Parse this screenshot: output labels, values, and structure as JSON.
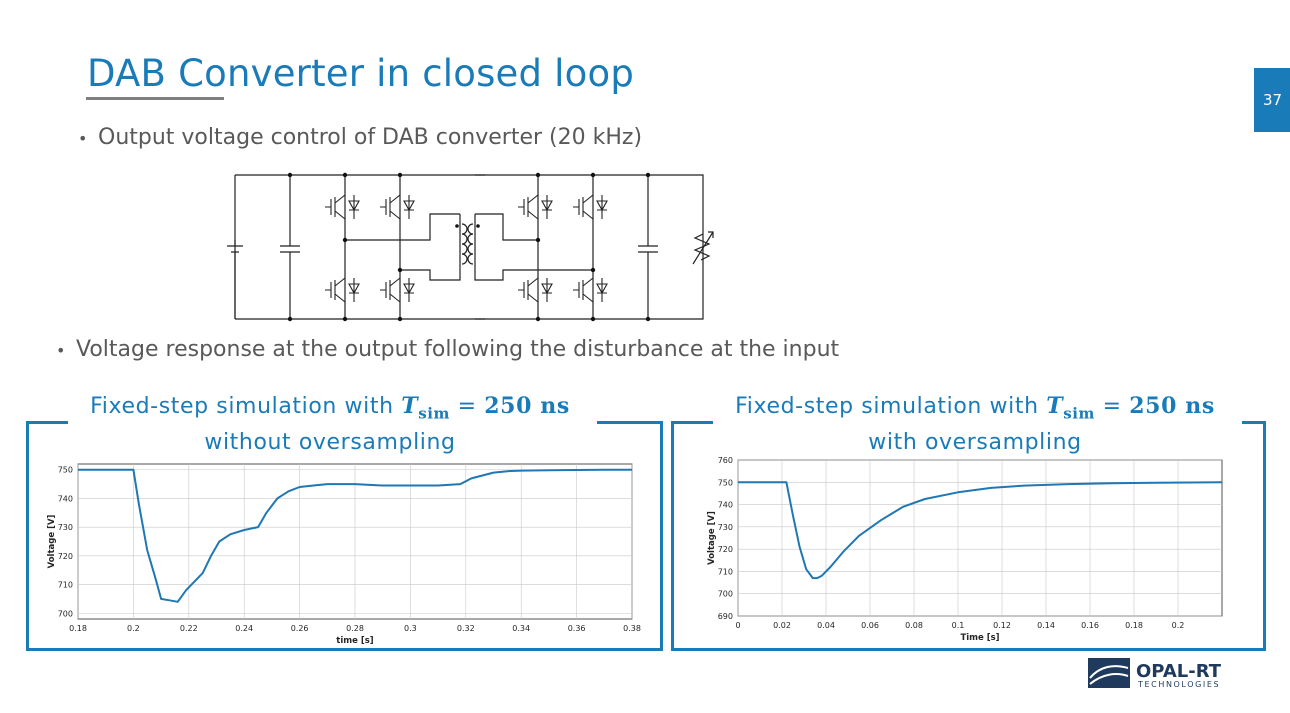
{
  "slide": {
    "title": "DAB Converter in closed loop",
    "page_number": "37",
    "bullets": [
      "Output voltage control of DAB converter (20 kHz)",
      "Voltage response at the output following the disturbance at the input"
    ]
  },
  "captions": [
    {
      "line1_prefix": "Fixed-step simulation with ",
      "sym": "T",
      "sub": "sim",
      "eq": " = ",
      "val": "250 ns",
      "line2": "without oversampling"
    },
    {
      "line1_prefix": "Fixed-step simulation with ",
      "sym": "T",
      "sub": "sim",
      "eq": " = ",
      "val": "250 ns",
      "line2": "with oversampling"
    }
  ],
  "logo": {
    "name": "OPAL-RT",
    "sub": "TECHNOLOGIES"
  },
  "colors": {
    "accent": "#1a7bb9",
    "trace": "#1f77b4",
    "text": "#595959"
  },
  "chart_data": [
    {
      "type": "line",
      "xlabel": "time [s]",
      "ylabel": "Voltage [V]",
      "xlim": [
        0.18,
        0.38
      ],
      "ylim": [
        698,
        752
      ],
      "xticks": [
        0.18,
        0.2,
        0.22,
        0.24,
        0.26,
        0.28,
        0.3,
        0.32,
        0.34,
        0.36,
        0.38
      ],
      "xtick_labels": [
        "0.18",
        "0.2",
        "0.22",
        "0.24",
        "0.26",
        "0.28",
        "0.3",
        "0.32",
        "0.34",
        "0.36",
        "0.38"
      ],
      "yticks": [
        700,
        710,
        720,
        730,
        740,
        750
      ],
      "ytick_labels": [
        "700",
        "710",
        "720",
        "730",
        "740",
        "750"
      ],
      "grid": true,
      "x": [
        0.18,
        0.2,
        0.202,
        0.205,
        0.208,
        0.21,
        0.213,
        0.216,
        0.219,
        0.222,
        0.225,
        0.228,
        0.231,
        0.235,
        0.24,
        0.245,
        0.248,
        0.252,
        0.256,
        0.26,
        0.265,
        0.27,
        0.28,
        0.29,
        0.3,
        0.31,
        0.318,
        0.322,
        0.326,
        0.33,
        0.335,
        0.34,
        0.35,
        0.36,
        0.37,
        0.38
      ],
      "y": [
        750,
        750,
        738,
        722,
        712,
        705,
        704.5,
        704,
        708,
        711,
        714,
        720,
        725,
        727.5,
        729,
        730,
        735,
        740,
        742.5,
        744,
        744.5,
        745,
        745,
        744.5,
        744.5,
        744.5,
        745,
        747,
        748,
        749,
        749.5,
        749.7,
        749.8,
        749.9,
        750,
        750
      ]
    },
    {
      "type": "line",
      "xlabel": "Time [s]",
      "ylabel": "Voltage [V]",
      "xlim": [
        0,
        0.22
      ],
      "ylim": [
        690,
        760
      ],
      "xticks": [
        0,
        0.02,
        0.04,
        0.06,
        0.08,
        0.1,
        0.12,
        0.14,
        0.16,
        0.18,
        0.2
      ],
      "xtick_labels": [
        "0",
        "0.02",
        "0.04",
        "0.06",
        "0.08",
        "0.1",
        "0.12",
        "0.14",
        "0.16",
        "0.18",
        "0.2"
      ],
      "yticks": [
        690,
        700,
        710,
        720,
        730,
        740,
        750,
        760
      ],
      "ytick_labels": [
        "690",
        "700",
        "710",
        "720",
        "730",
        "740",
        "750",
        "760"
      ],
      "grid": true,
      "x": [
        0,
        0.022,
        0.025,
        0.028,
        0.031,
        0.034,
        0.036,
        0.038,
        0.042,
        0.048,
        0.055,
        0.065,
        0.075,
        0.085,
        0.1,
        0.115,
        0.13,
        0.15,
        0.17,
        0.19,
        0.22
      ],
      "y": [
        750,
        750,
        735,
        721,
        711,
        707,
        707,
        708,
        712,
        719,
        726,
        733,
        739,
        742.5,
        745.5,
        747.5,
        748.5,
        749.2,
        749.6,
        749.8,
        750
      ]
    }
  ]
}
